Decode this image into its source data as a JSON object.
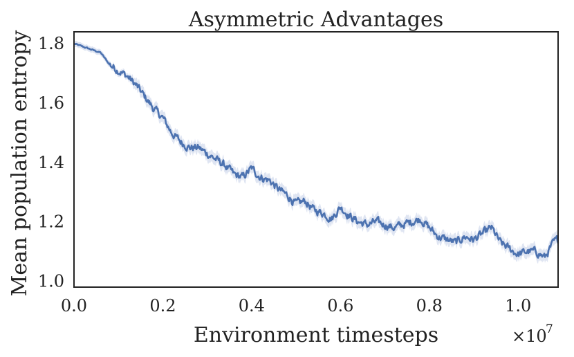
{
  "chart_data": {
    "type": "line",
    "title": "Asymmetric Advantages",
    "xlabel": "Environment timesteps",
    "ylabel": "Mean population entropy",
    "x_multiplier_label": "×10",
    "x_multiplier_exponent": "7",
    "xlim": [
      0,
      1.09
    ],
    "ylim": [
      0.98,
      1.84
    ],
    "x_ticks": [
      0.0,
      0.2,
      0.4,
      0.6,
      0.8,
      1.0
    ],
    "x_tick_labels": [
      "0.0",
      "0.2",
      "0.4",
      "0.6",
      "0.8",
      "1.0"
    ],
    "y_ticks": [
      1.0,
      1.2,
      1.4,
      1.6,
      1.8
    ],
    "y_tick_labels": [
      "1.0",
      "1.2",
      "1.4",
      "1.6",
      "1.8"
    ],
    "grid": false,
    "series_color": "#4c72b0",
    "band_color": "#c9d3ea",
    "series": [
      {
        "x": [
          0.0,
          0.02,
          0.04,
          0.06,
          0.08,
          0.1,
          0.12,
          0.14,
          0.16,
          0.18,
          0.2,
          0.22,
          0.24,
          0.26,
          0.28,
          0.3,
          0.32,
          0.34,
          0.36,
          0.38,
          0.4,
          0.42,
          0.44,
          0.46,
          0.48,
          0.5,
          0.52,
          0.54,
          0.56,
          0.58,
          0.6,
          0.62,
          0.64,
          0.66,
          0.68,
          0.7,
          0.72,
          0.74,
          0.76,
          0.78,
          0.8,
          0.82,
          0.84,
          0.86,
          0.88,
          0.9,
          0.92,
          0.94,
          0.96,
          0.98,
          1.0,
          1.02,
          1.04,
          1.06,
          1.08,
          1.09
        ],
        "values": [
          1.8,
          1.79,
          1.78,
          1.77,
          1.73,
          1.71,
          1.69,
          1.66,
          1.62,
          1.58,
          1.55,
          1.5,
          1.47,
          1.45,
          1.45,
          1.43,
          1.41,
          1.39,
          1.36,
          1.35,
          1.38,
          1.35,
          1.34,
          1.31,
          1.29,
          1.26,
          1.27,
          1.24,
          1.23,
          1.21,
          1.25,
          1.22,
          1.2,
          1.19,
          1.2,
          1.19,
          1.18,
          1.19,
          1.2,
          1.21,
          1.18,
          1.15,
          1.14,
          1.13,
          1.15,
          1.14,
          1.16,
          1.18,
          1.13,
          1.11,
          1.09,
          1.1,
          1.1,
          1.08,
          1.13,
          1.14
        ],
        "lower": [
          1.79,
          1.78,
          1.77,
          1.76,
          1.72,
          1.7,
          1.68,
          1.64,
          1.6,
          1.56,
          1.53,
          1.48,
          1.45,
          1.43,
          1.43,
          1.41,
          1.39,
          1.37,
          1.34,
          1.33,
          1.36,
          1.33,
          1.32,
          1.29,
          1.27,
          1.24,
          1.25,
          1.22,
          1.21,
          1.19,
          1.23,
          1.2,
          1.18,
          1.17,
          1.18,
          1.17,
          1.16,
          1.17,
          1.18,
          1.19,
          1.16,
          1.13,
          1.12,
          1.11,
          1.13,
          1.12,
          1.14,
          1.16,
          1.11,
          1.09,
          1.07,
          1.08,
          1.08,
          1.06,
          1.11,
          1.12
        ],
        "upper": [
          1.81,
          1.8,
          1.79,
          1.78,
          1.74,
          1.72,
          1.7,
          1.68,
          1.64,
          1.6,
          1.57,
          1.52,
          1.49,
          1.47,
          1.47,
          1.45,
          1.43,
          1.41,
          1.38,
          1.37,
          1.4,
          1.37,
          1.36,
          1.33,
          1.31,
          1.28,
          1.29,
          1.26,
          1.25,
          1.23,
          1.27,
          1.24,
          1.22,
          1.21,
          1.22,
          1.21,
          1.2,
          1.21,
          1.22,
          1.23,
          1.2,
          1.17,
          1.16,
          1.15,
          1.17,
          1.16,
          1.18,
          1.2,
          1.15,
          1.13,
          1.11,
          1.12,
          1.12,
          1.1,
          1.15,
          1.16
        ]
      }
    ]
  }
}
